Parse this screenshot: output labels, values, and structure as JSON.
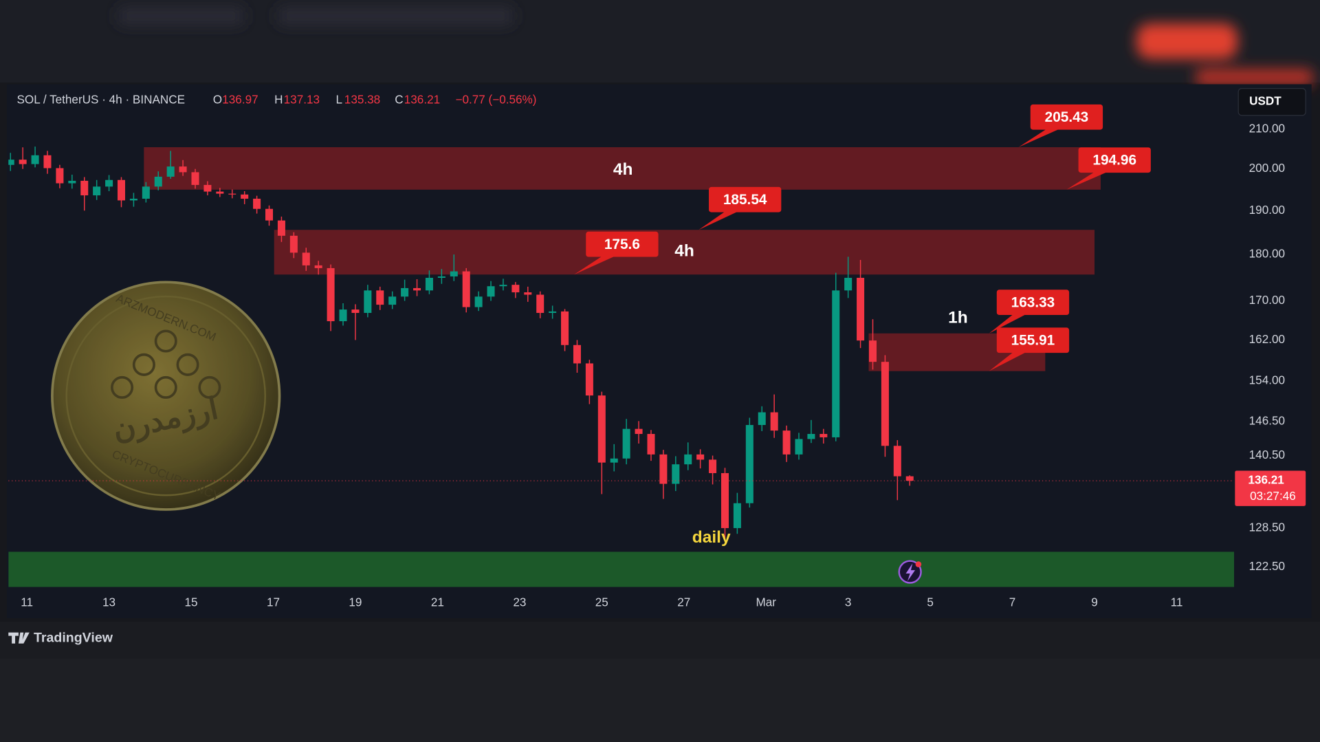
{
  "chart_data": {
    "type": "candlestick",
    "symbol": "SOL / TetherUS · 4h · BINANCE",
    "header_labels": [
      "O",
      "H",
      "L",
      "C"
    ],
    "change_label": "−0.77 (−0.56%)",
    "countdown": "03:27:46",
    "currency": "USDT",
    "branding": "TradingView",
    "watermark": [
      "ARZMODERN.COM",
      "ارزمدرن",
      "CRYPTOCURRENCY"
    ],
    "log_scale": true,
    "grid": false,
    "up_color": "#089981",
    "down_color": "#f23645",
    "xlim": [
      -0.45,
      29.4
    ],
    "xticks": [
      {
        "value": 0,
        "label": "11"
      },
      {
        "value": 2,
        "label": "13"
      },
      {
        "value": 4,
        "label": "15"
      },
      {
        "value": 6,
        "label": "17"
      },
      {
        "value": 8,
        "label": "19"
      },
      {
        "value": 10,
        "label": "21"
      },
      {
        "value": 12,
        "label": "23"
      },
      {
        "value": 14,
        "label": "25"
      },
      {
        "value": 16,
        "label": "27"
      },
      {
        "value": 18,
        "label": "Mar"
      },
      {
        "value": 20,
        "label": "3"
      },
      {
        "value": 22,
        "label": "5"
      },
      {
        "value": 24,
        "label": "7"
      },
      {
        "value": 26,
        "label": "9"
      },
      {
        "value": 28,
        "label": "11"
      }
    ],
    "ylim": [
      119.5,
      222
    ],
    "yticks": [
      {
        "value": 210,
        "label": "210.00"
      },
      {
        "value": 200,
        "label": "200.00"
      },
      {
        "value": 190,
        "label": "190.00"
      },
      {
        "value": 180,
        "label": "180.00"
      },
      {
        "value": 170,
        "label": "170.00"
      },
      {
        "value": 162,
        "label": "162.00"
      },
      {
        "value": 154,
        "label": "154.00"
      },
      {
        "value": 146.5,
        "label": "146.50"
      },
      {
        "value": 140.5,
        "label": "140.50"
      },
      {
        "value": 128.5,
        "label": "128.50"
      },
      {
        "value": 122.5,
        "label": "122.50"
      }
    ],
    "x": [
      -0.4,
      -0.1,
      0.2,
      0.5,
      0.8,
      1.1,
      1.4,
      1.7,
      2,
      2.3,
      2.6,
      2.9,
      3.2,
      3.5,
      3.8,
      4.1,
      4.4,
      4.7,
      5,
      5.3,
      5.6,
      5.9,
      6.2,
      6.5,
      6.8,
      7.1,
      7.4,
      7.7,
      8,
      8.3,
      8.6,
      8.9,
      9.2,
      9.5,
      9.8,
      10.1,
      10.4,
      10.7,
      11,
      11.3,
      11.6,
      11.9,
      12.2,
      12.5,
      12.8,
      13.1,
      13.4,
      13.7,
      14,
      14.3,
      14.6,
      14.9,
      15.2,
      15.5,
      15.8,
      16.1,
      16.4,
      16.7,
      17,
      17.3,
      17.6,
      17.9,
      18.2,
      18.5,
      18.8,
      19.1,
      19.4,
      19.7,
      20,
      20.3,
      20.6,
      20.9,
      21.2,
      21.5
    ],
    "open": [
      201.0,
      202.3,
      201.2,
      203.4,
      200.2,
      196.5,
      197.1,
      193.6,
      195.7,
      197.3,
      192.4,
      192.8,
      195.7,
      198.1,
      200.6,
      199.2,
      196.1,
      194.5,
      194.0,
      193.8,
      192.8,
      190.4,
      187.7,
      184.2,
      180.4,
      177.6,
      177.0,
      165.8,
      168.2,
      167.5,
      172.2,
      169.2,
      170.9,
      172.7,
      172.2,
      174.9,
      175.2,
      176.3,
      168.7,
      170.9,
      173.1,
      173.4,
      171.8,
      171.3,
      167.5,
      167.8,
      161.0,
      157.4,
      151.3,
      139.3,
      140.0,
      145.2,
      144.3,
      140.7,
      135.7,
      139.0,
      140.7,
      139.8,
      137.5,
      128.5,
      132.5,
      145.9,
      148.2,
      144.9,
      140.7,
      143.4,
      144.3,
      143.7,
      172.2,
      174.9,
      161.9,
      157.7,
      142.2,
      136.97
    ],
    "high": [
      204.0,
      205.4,
      205.6,
      204.5,
      201.0,
      198.6,
      198.0,
      197.3,
      198.5,
      198.0,
      194.2,
      196.8,
      199.4,
      204.5,
      202.2,
      200.0,
      197.0,
      195.4,
      195.0,
      194.6,
      193.5,
      191.2,
      188.6,
      185.0,
      181.5,
      178.6,
      177.8,
      169.5,
      169.3,
      173.4,
      173.0,
      172.0,
      174.5,
      174.6,
      176.5,
      176.8,
      180.0,
      177.0,
      172.0,
      174.2,
      174.7,
      174.0,
      173.0,
      172.0,
      169.0,
      168.3,
      162.0,
      158.1,
      152.0,
      142.5,
      147.0,
      146.6,
      145.0,
      141.5,
      140.4,
      142.8,
      141.6,
      140.5,
      138.4,
      134.2,
      147.2,
      149.3,
      151.5,
      145.8,
      144.5,
      146.8,
      145.2,
      176.0,
      179.5,
      178.8,
      166.2,
      159.0,
      143.2,
      137.13
    ],
    "low": [
      199.5,
      200.0,
      200.4,
      198.8,
      195.3,
      195.2,
      190.0,
      192.5,
      194.6,
      190.8,
      190.9,
      191.9,
      194.8,
      197.6,
      198.3,
      195.2,
      193.6,
      193.2,
      192.9,
      191.5,
      189.3,
      186.5,
      182.8,
      179.2,
      176.4,
      175.6,
      163.8,
      164.9,
      162.0,
      166.6,
      168.1,
      168.3,
      170.0,
      171.0,
      171.4,
      173.6,
      174.2,
      167.6,
      167.9,
      170.0,
      172.2,
      170.6,
      169.8,
      166.4,
      166.3,
      159.8,
      155.6,
      149.7,
      134.0,
      137.8,
      139.0,
      142.6,
      139.6,
      133.2,
      134.5,
      138.0,
      138.3,
      135.6,
      126.8,
      127.6,
      131.8,
      144.8,
      143.6,
      139.4,
      139.8,
      142.7,
      142.6,
      143.0,
      170.6,
      160.4,
      156.2,
      140.3,
      133.0,
      135.38
    ],
    "close": [
      202.3,
      201.2,
      203.4,
      200.2,
      196.5,
      197.1,
      193.6,
      195.7,
      197.3,
      192.4,
      192.8,
      195.7,
      198.1,
      200.6,
      199.2,
      196.1,
      194.5,
      194.0,
      193.8,
      192.8,
      190.4,
      187.7,
      184.2,
      180.4,
      177.6,
      177.0,
      165.8,
      168.2,
      167.5,
      172.2,
      169.2,
      170.9,
      172.7,
      172.2,
      174.9,
      175.2,
      176.3,
      168.7,
      170.9,
      173.1,
      173.4,
      171.8,
      171.3,
      167.5,
      167.8,
      161.0,
      157.4,
      151.3,
      139.3,
      140.0,
      145.2,
      144.3,
      140.7,
      135.7,
      139.0,
      140.7,
      139.8,
      137.5,
      128.5,
      132.5,
      145.9,
      148.2,
      144.9,
      140.7,
      143.4,
      144.3,
      143.7,
      172.2,
      174.9,
      161.9,
      157.7,
      142.2,
      136.97,
      136.21
    ],
    "zones": [
      {
        "label": "4h",
        "top": 205.43,
        "bottom": 194.96,
        "start": 2.85,
        "end": 26.15,
        "color": "#7a1c22",
        "label_color": "#ffffff"
      },
      {
        "label": "4h",
        "top": 185.54,
        "bottom": 175.6,
        "start": 6.02,
        "end": 26.0,
        "color": "#7a1c22",
        "label_color": "#ffffff"
      },
      {
        "label": "1h",
        "top": 163.33,
        "bottom": 155.91,
        "start": 20.5,
        "end": 24.8,
        "color": "#7a1c22",
        "label_color": "#ffffff"
      },
      {
        "label": "daily",
        "top": 124.8,
        "bottom": 119.5,
        "start": -0.45,
        "end": 29.4,
        "color": "#1f6b2b",
        "label_color": "#f5d63d"
      }
    ]
  }
}
